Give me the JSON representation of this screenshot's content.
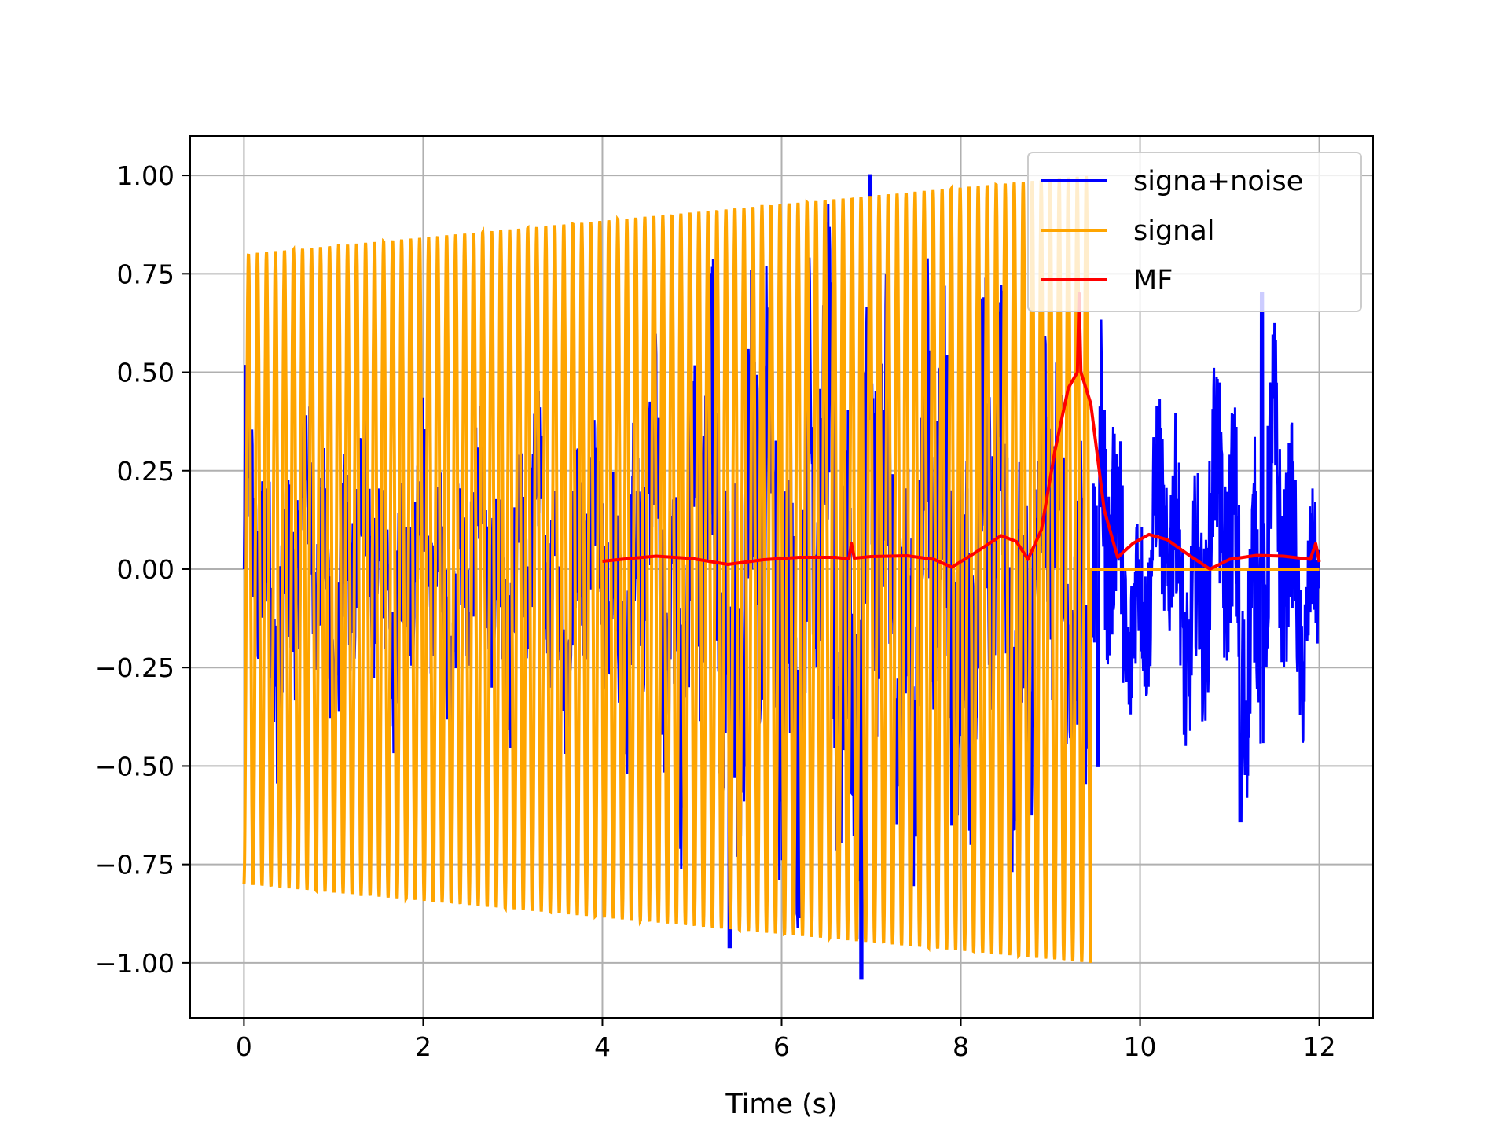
{
  "chart_data": {
    "type": "line",
    "title": "",
    "xlabel": "Time (s)",
    "ylabel": "",
    "xlim": [
      -0.6,
      12.6
    ],
    "ylim": [
      -1.14,
      1.1
    ],
    "xticks": [
      0,
      2,
      4,
      6,
      8,
      10,
      12
    ],
    "xtick_labels": [
      "0",
      "2",
      "4",
      "6",
      "8",
      "10",
      "12"
    ],
    "yticks": [
      1.0,
      0.75,
      0.5,
      0.25,
      0.0,
      -0.25,
      -0.5,
      -0.75,
      -1.0
    ],
    "ytick_labels": [
      "1.00",
      "0.75",
      "0.50",
      "0.25",
      "0.00",
      "−0.25",
      "−0.50",
      "−0.75",
      "−1.00"
    ],
    "grid": true,
    "legend_position": "top-right",
    "series": [
      {
        "name": "signa+noise",
        "color": "#0000ff",
        "x_range": [
          0,
          12
        ],
        "noise_envelope": [
          [
            0.0,
            0.55
          ],
          [
            2.0,
            0.45
          ],
          [
            4.0,
            0.5
          ],
          [
            5.4,
            0.95
          ],
          [
            6.9,
            1.02
          ],
          [
            8.0,
            0.9
          ],
          [
            9.4,
            0.75
          ],
          [
            10.0,
            0.45
          ],
          [
            11.0,
            0.6
          ],
          [
            11.4,
            0.7
          ],
          [
            12.0,
            0.35
          ]
        ],
        "peaks": [
          {
            "x": 6.99,
            "y": 1.0
          },
          {
            "x": 6.89,
            "y": -1.04
          },
          {
            "x": 5.42,
            "y": -0.96
          },
          {
            "x": 11.36,
            "y": 0.7
          },
          {
            "x": 11.12,
            "y": -0.64
          },
          {
            "x": 9.53,
            "y": -0.5
          }
        ]
      },
      {
        "name": "signal",
        "color": "#ffa500",
        "x_range": [
          0,
          9.45
        ],
        "start_amplitude": 0.8,
        "end_amplitude": 1.0,
        "cycles": 94,
        "after_end_value": 0.0
      },
      {
        "name": "MF",
        "color": "#ff0000",
        "points": [
          [
            4.0,
            0.02
          ],
          [
            4.3,
            0.027
          ],
          [
            4.6,
            0.033
          ],
          [
            5.0,
            0.027
          ],
          [
            5.4,
            0.012
          ],
          [
            5.8,
            0.024
          ],
          [
            6.2,
            0.03
          ],
          [
            6.6,
            0.03
          ],
          [
            6.75,
            0.026
          ],
          [
            6.78,
            0.065
          ],
          [
            6.81,
            0.028
          ],
          [
            7.0,
            0.032
          ],
          [
            7.4,
            0.034
          ],
          [
            7.7,
            0.025
          ],
          [
            7.9,
            0.005
          ],
          [
            8.15,
            0.04
          ],
          [
            8.45,
            0.085
          ],
          [
            8.62,
            0.07
          ],
          [
            8.75,
            0.025
          ],
          [
            8.9,
            0.1
          ],
          [
            9.05,
            0.3
          ],
          [
            9.2,
            0.46
          ],
          [
            9.3,
            0.5
          ],
          [
            9.32,
            0.7
          ],
          [
            9.34,
            0.5
          ],
          [
            9.45,
            0.42
          ],
          [
            9.6,
            0.15
          ],
          [
            9.75,
            0.03
          ],
          [
            9.92,
            0.065
          ],
          [
            10.1,
            0.088
          ],
          [
            10.3,
            0.075
          ],
          [
            10.55,
            0.035
          ],
          [
            10.78,
            0.0
          ],
          [
            11.0,
            0.025
          ],
          [
            11.3,
            0.035
          ],
          [
            11.6,
            0.033
          ],
          [
            11.9,
            0.025
          ],
          [
            11.96,
            0.065
          ],
          [
            12.0,
            0.018
          ]
        ]
      }
    ]
  }
}
